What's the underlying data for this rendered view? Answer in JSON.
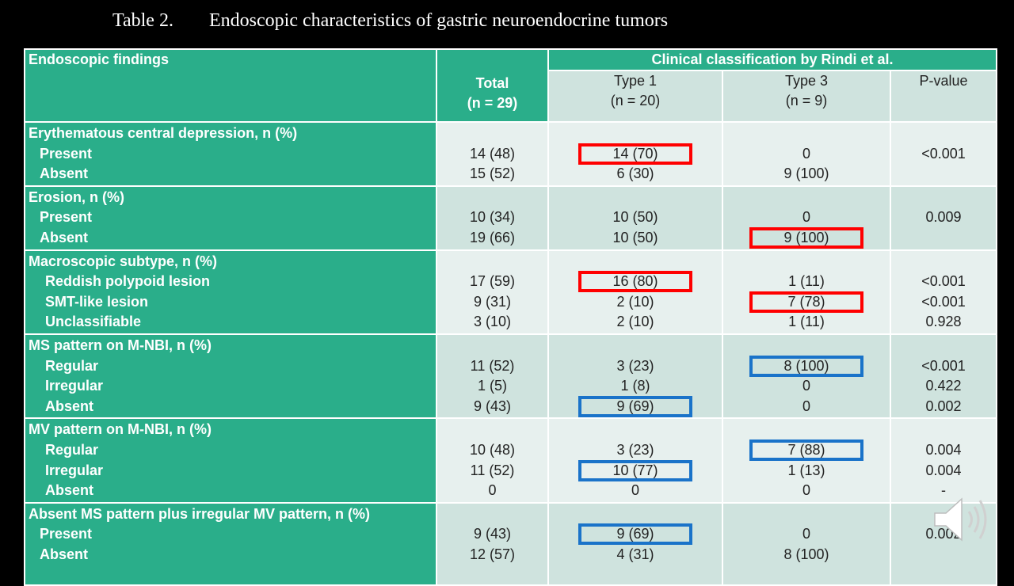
{
  "title": {
    "number": "Table 2.",
    "text": "Endoscopic characteristics of gastric neuroendocrine tumors"
  },
  "header": {
    "findings": "Endoscopic findings",
    "total_line1": "Total",
    "total_line2": "(n = 29)",
    "clinical": "Clinical classification by Rindi et al.",
    "type1_line1": "Type 1",
    "type1_line2": "(n = 20)",
    "type3_line1": "Type 3",
    "type3_line2": "(n = 9)",
    "pvalue": "P-value"
  },
  "groups": [
    {
      "label": "Erythematous central depression, n (%)",
      "rows": [
        {
          "label": "Present",
          "total": "14 (48)",
          "type1": "14 (70)",
          "type3": "0",
          "p": "<0.001"
        },
        {
          "label": "Absent",
          "total": "15 (52)",
          "type1": "6 (30)",
          "type3": "9 (100)",
          "p": ""
        }
      ]
    },
    {
      "label": "Erosion, n (%)",
      "rows": [
        {
          "label": "Present",
          "total": "10 (34)",
          "type1": "10 (50)",
          "type3": "0",
          "p": "0.009"
        },
        {
          "label": "Absent",
          "total": "19 (66)",
          "type1": "10 (50)",
          "type3": "9 (100)",
          "p": ""
        }
      ]
    },
    {
      "label": "Macroscopic subtype, n (%)",
      "rows": [
        {
          "label": "Reddish polypoid lesion",
          "total": "17 (59)",
          "type1": "16 (80)",
          "type3": "1 (11)",
          "p": "<0.001"
        },
        {
          "label": "SMT-like lesion",
          "total": "9 (31)",
          "type1": "2 (10)",
          "type3": "7 (78)",
          "p": "<0.001"
        },
        {
          "label": "Unclassifiable",
          "total": "3 (10)",
          "type1": "2 (10)",
          "type3": "1 (11)",
          "p": "0.928"
        }
      ]
    },
    {
      "label": "MS pattern on M-NBI, n (%)",
      "rows": [
        {
          "label": "Regular",
          "total": "11 (52)",
          "type1": "3 (23)",
          "type3": "8 (100)",
          "p": "<0.001"
        },
        {
          "label": "Irregular",
          "total": "1 (5)",
          "type1": "1 (8)",
          "type3": "0",
          "p": "0.422"
        },
        {
          "label": "Absent",
          "total": "9 (43)",
          "type1": "9 (69)",
          "type3": "0",
          "p": "0.002"
        }
      ]
    },
    {
      "label": "MV pattern on M-NBI, n (%)",
      "rows": [
        {
          "label": "Regular",
          "total": "10 (48)",
          "type1": "3 (23)",
          "type3": "7 (88)",
          "p": "0.004"
        },
        {
          "label": "Irregular",
          "total": "11 (52)",
          "type1": "10 (77)",
          "type3": "1 (13)",
          "p": "0.004"
        },
        {
          "label": "Absent",
          "total": "0",
          "type1": "0",
          "type3": "0",
          "p": "-"
        }
      ]
    },
    {
      "label": "Absent MS pattern plus irregular MV pattern, n (%)",
      "rows": [
        {
          "label": "Present",
          "total": "9 (43)",
          "type1": "9 (69)",
          "type3": "0",
          "p": "0.002"
        },
        {
          "label": "Absent",
          "total": "12 (57)",
          "type1": "4 (31)",
          "type3": "8 (100)",
          "p": ""
        }
      ]
    }
  ],
  "colors": {
    "teal": "#2aae8a",
    "light_cell": "#e7f0ee",
    "dark_cell": "#cfe3de",
    "highlight_red": "#ff0000",
    "highlight_blue": "#1a73c9"
  },
  "icons": {
    "audio": "speaker-icon"
  }
}
